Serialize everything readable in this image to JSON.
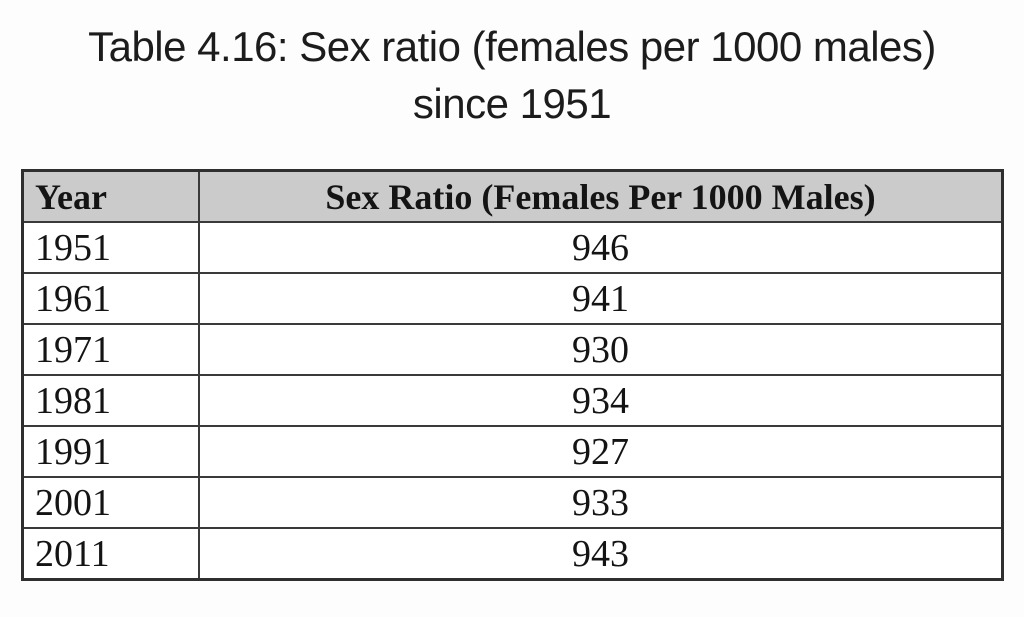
{
  "page": {
    "title_line1": "Table 4.16: Sex ratio (females per 1000 males)",
    "title_line2": "since 1951"
  },
  "table": {
    "columns": [
      "Year",
      "Sex Ratio (Females Per 1000 Males)"
    ],
    "rows": [
      {
        "year": "1951",
        "value": "946"
      },
      {
        "year": "1961",
        "value": "941"
      },
      {
        "year": "1971",
        "value": "930"
      },
      {
        "year": "1981",
        "value": "934"
      },
      {
        "year": "1991",
        "value": "927"
      },
      {
        "year": "2001",
        "value": "933"
      },
      {
        "year": "2011",
        "value": "943"
      }
    ],
    "colors": {
      "header_bg": "#cbcbcb",
      "border": "#3a3a3a",
      "outer_border": "#2f2f2f",
      "text": "#141414",
      "title_text": "#1c1c1c",
      "page_bg": "#fdfdfd"
    }
  },
  "chart_data": {
    "type": "table",
    "title": "Table 4.16: Sex ratio (females per 1000 males) since 1951",
    "columns": [
      "Year",
      "Sex Ratio (Females Per 1000 Males)"
    ],
    "categories": [
      "1951",
      "1961",
      "1971",
      "1981",
      "1991",
      "2001",
      "2011"
    ],
    "values": [
      946,
      941,
      930,
      934,
      927,
      933,
      943
    ]
  }
}
